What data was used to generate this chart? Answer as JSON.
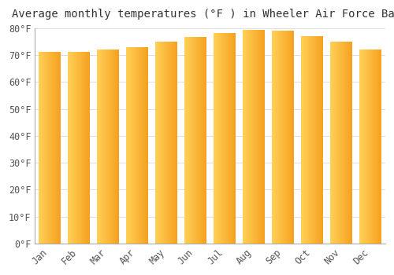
{
  "title": "Average monthly temperatures (°F ) in Wheeler Air Force Base",
  "months": [
    "Jan",
    "Feb",
    "Mar",
    "Apr",
    "May",
    "Jun",
    "Jul",
    "Aug",
    "Sep",
    "Oct",
    "Nov",
    "Dec"
  ],
  "values": [
    71.1,
    71.1,
    72.0,
    73.0,
    75.0,
    76.8,
    78.3,
    79.5,
    79.0,
    77.0,
    75.0,
    72.0
  ],
  "ylim": [
    0,
    80
  ],
  "yticks": [
    0,
    10,
    20,
    30,
    40,
    50,
    60,
    70,
    80
  ],
  "ytick_labels": [
    "0°F",
    "10°F",
    "20°F",
    "30°F",
    "40°F",
    "50°F",
    "60°F",
    "70°F",
    "80°F"
  ],
  "bar_color_left": "#FFD055",
  "bar_color_right": "#F5A020",
  "background_color": "#ffffff",
  "plot_bg_color": "#ffffff",
  "title_fontsize": 10,
  "tick_fontsize": 8.5,
  "grid_color": "#e0e0e0",
  "bar_width": 0.75
}
